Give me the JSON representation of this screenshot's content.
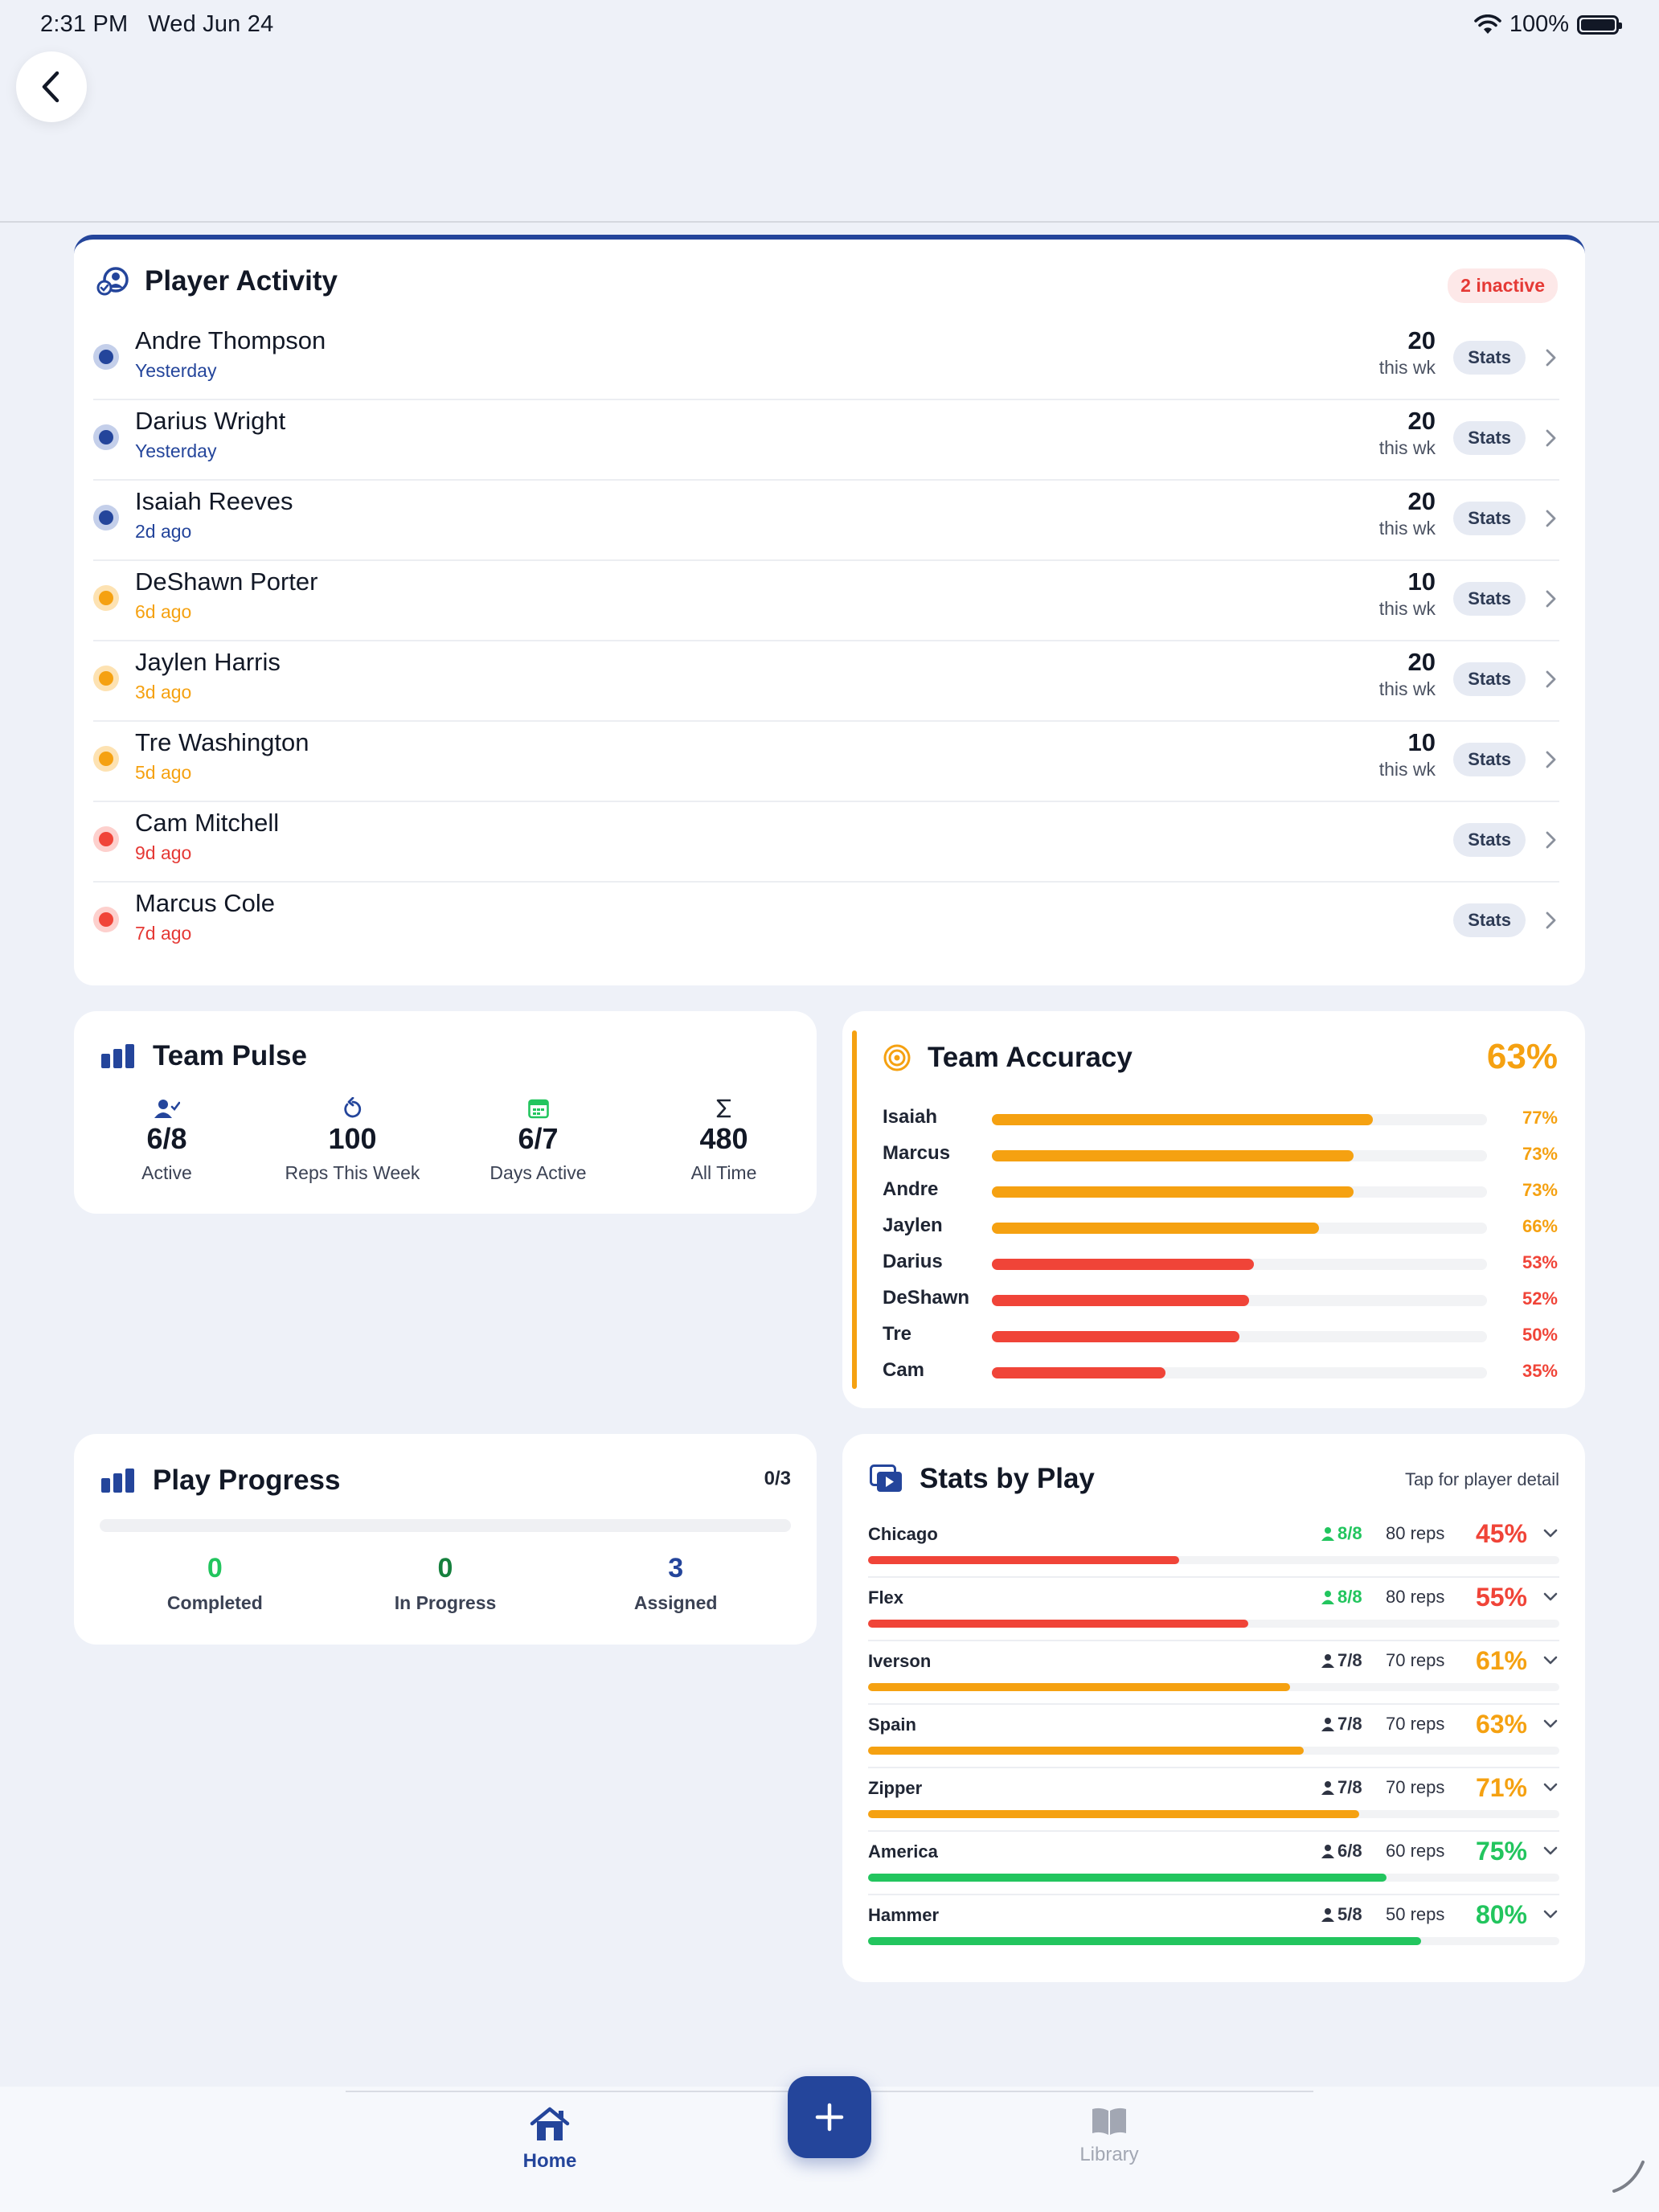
{
  "status_bar": {
    "time": "2:31 PM",
    "date": "Wed Jun 24",
    "battery": "100%"
  },
  "player_activity": {
    "title": "Player Activity",
    "inactive_badge": "2 inactive",
    "stats_label": "Stats",
    "reps_unit": "this wk",
    "players": [
      {
        "name": "Andre Thompson",
        "last_active": "Yesterday",
        "status": "blue",
        "reps": "20"
      },
      {
        "name": "Darius Wright",
        "last_active": "Yesterday",
        "status": "blue",
        "reps": "20"
      },
      {
        "name": "Isaiah Reeves",
        "last_active": "2d ago",
        "status": "blue",
        "reps": "20"
      },
      {
        "name": "DeShawn Porter",
        "last_active": "6d ago",
        "status": "orange",
        "reps": "10"
      },
      {
        "name": "Jaylen Harris",
        "last_active": "3d ago",
        "status": "orange",
        "reps": "20"
      },
      {
        "name": "Tre Washington",
        "last_active": "5d ago",
        "status": "orange",
        "reps": "10"
      },
      {
        "name": "Cam Mitchell",
        "last_active": "9d ago",
        "status": "red",
        "reps": ""
      },
      {
        "name": "Marcus Cole",
        "last_active": "7d ago",
        "status": "red",
        "reps": ""
      }
    ]
  },
  "team_pulse": {
    "title": "Team Pulse",
    "stats": [
      {
        "icon": "person-check-icon",
        "value": "6/8",
        "label": "Active"
      },
      {
        "icon": "repeat-icon",
        "value": "100",
        "label": "Reps This Week"
      },
      {
        "icon": "calendar-icon",
        "value": "6/7",
        "label": "Days Active"
      },
      {
        "icon": "sigma-icon",
        "value": "480",
        "label": "All Time"
      }
    ]
  },
  "team_accuracy": {
    "title": "Team Accuracy",
    "total": "63%",
    "players": [
      {
        "name": "Isaiah",
        "pct": 77,
        "label": "77%"
      },
      {
        "name": "Marcus",
        "pct": 73,
        "label": "73%"
      },
      {
        "name": "Andre",
        "pct": 73,
        "label": "73%"
      },
      {
        "name": "Jaylen",
        "pct": 66,
        "label": "66%"
      },
      {
        "name": "Darius",
        "pct": 53,
        "label": "53%"
      },
      {
        "name": "DeShawn",
        "pct": 52,
        "label": "52%"
      },
      {
        "name": "Tre",
        "pct": 50,
        "label": "50%"
      },
      {
        "name": "Cam",
        "pct": 35,
        "label": "35%"
      }
    ]
  },
  "play_progress": {
    "title": "Play Progress",
    "count": "0/3",
    "progress": 0,
    "stats": [
      {
        "value": "0",
        "label": "Completed",
        "color": "#22c55e"
      },
      {
        "value": "0",
        "label": "In Progress",
        "color": "#15803d"
      },
      {
        "value": "3",
        "label": "Assigned",
        "color": "#24459b"
      }
    ]
  },
  "stats_by_play": {
    "title": "Stats by Play",
    "hint": "Tap for player detail",
    "plays": [
      {
        "name": "Chicago",
        "players": "8/8",
        "full": true,
        "reps": "80 reps",
        "pct": 45,
        "label": "45%"
      },
      {
        "name": "Flex",
        "players": "8/8",
        "full": true,
        "reps": "80 reps",
        "pct": 55,
        "label": "55%"
      },
      {
        "name": "Iverson",
        "players": "7/8",
        "full": false,
        "reps": "70 reps",
        "pct": 61,
        "label": "61%"
      },
      {
        "name": "Spain",
        "players": "7/8",
        "full": false,
        "reps": "70 reps",
        "pct": 63,
        "label": "63%"
      },
      {
        "name": "Zipper",
        "players": "7/8",
        "full": false,
        "reps": "70 reps",
        "pct": 71,
        "label": "71%"
      },
      {
        "name": "America",
        "players": "6/8",
        "full": false,
        "reps": "60 reps",
        "pct": 75,
        "label": "75%"
      },
      {
        "name": "Hammer",
        "players": "5/8",
        "full": false,
        "reps": "50 reps",
        "pct": 80,
        "label": "80%"
      }
    ]
  },
  "nav": {
    "home": "Home",
    "library": "Library"
  },
  "colors": {
    "primary": "#24459b",
    "good": "#22c55e",
    "warn": "#f5a111",
    "bad": "#f04438"
  }
}
